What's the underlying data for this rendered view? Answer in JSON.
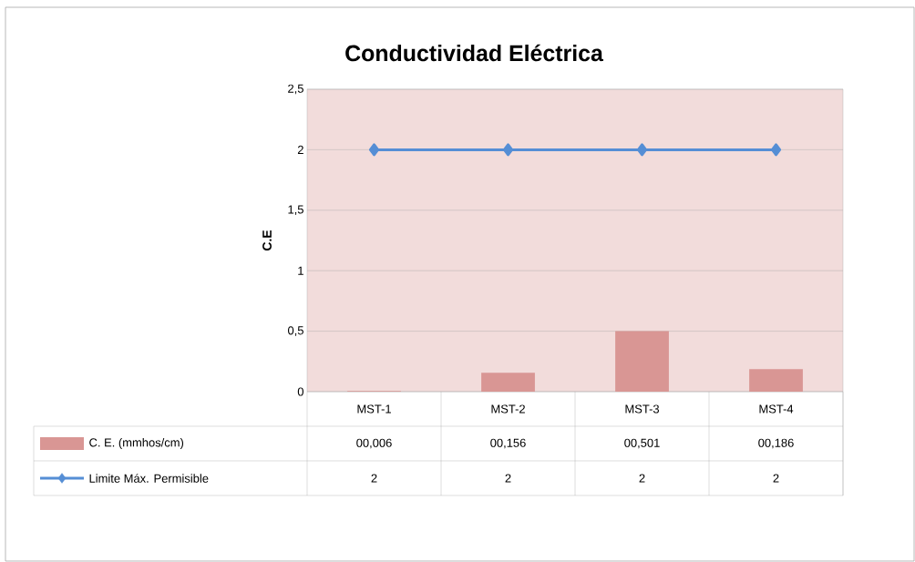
{
  "chart_data": {
    "type": "bar",
    "title": "Conductividad Eléctrica",
    "ylabel": "C.E",
    "categories": [
      "MST-1",
      "MST-2",
      "MST-3",
      "MST-4"
    ],
    "series": [
      {
        "name": "C. E. (mmhos/cm)",
        "color": "#d99694",
        "values": [
          0.006,
          0.156,
          0.501,
          0.186
        ],
        "value_labels": [
          "00,006",
          "00,156",
          "00,501",
          "00,186"
        ]
      },
      {
        "name": "Limite Máx. Permisible",
        "type": "line",
        "color": "#558ed5",
        "marker": "diamond",
        "line_style": "solid",
        "values": [
          2,
          2,
          2,
          2
        ],
        "value_labels": [
          "2",
          "2",
          "2",
          "2"
        ]
      }
    ],
    "ylim": [
      0,
      2.5
    ],
    "yticks": [
      0,
      {
        "value": 0.5,
        "label": "0,5"
      },
      1,
      {
        "value": 1.5,
        "label": "1,5"
      },
      2,
      {
        "value": 2.5,
        "label": "2,5"
      }
    ],
    "grid": "y",
    "legend": "bottom"
  }
}
